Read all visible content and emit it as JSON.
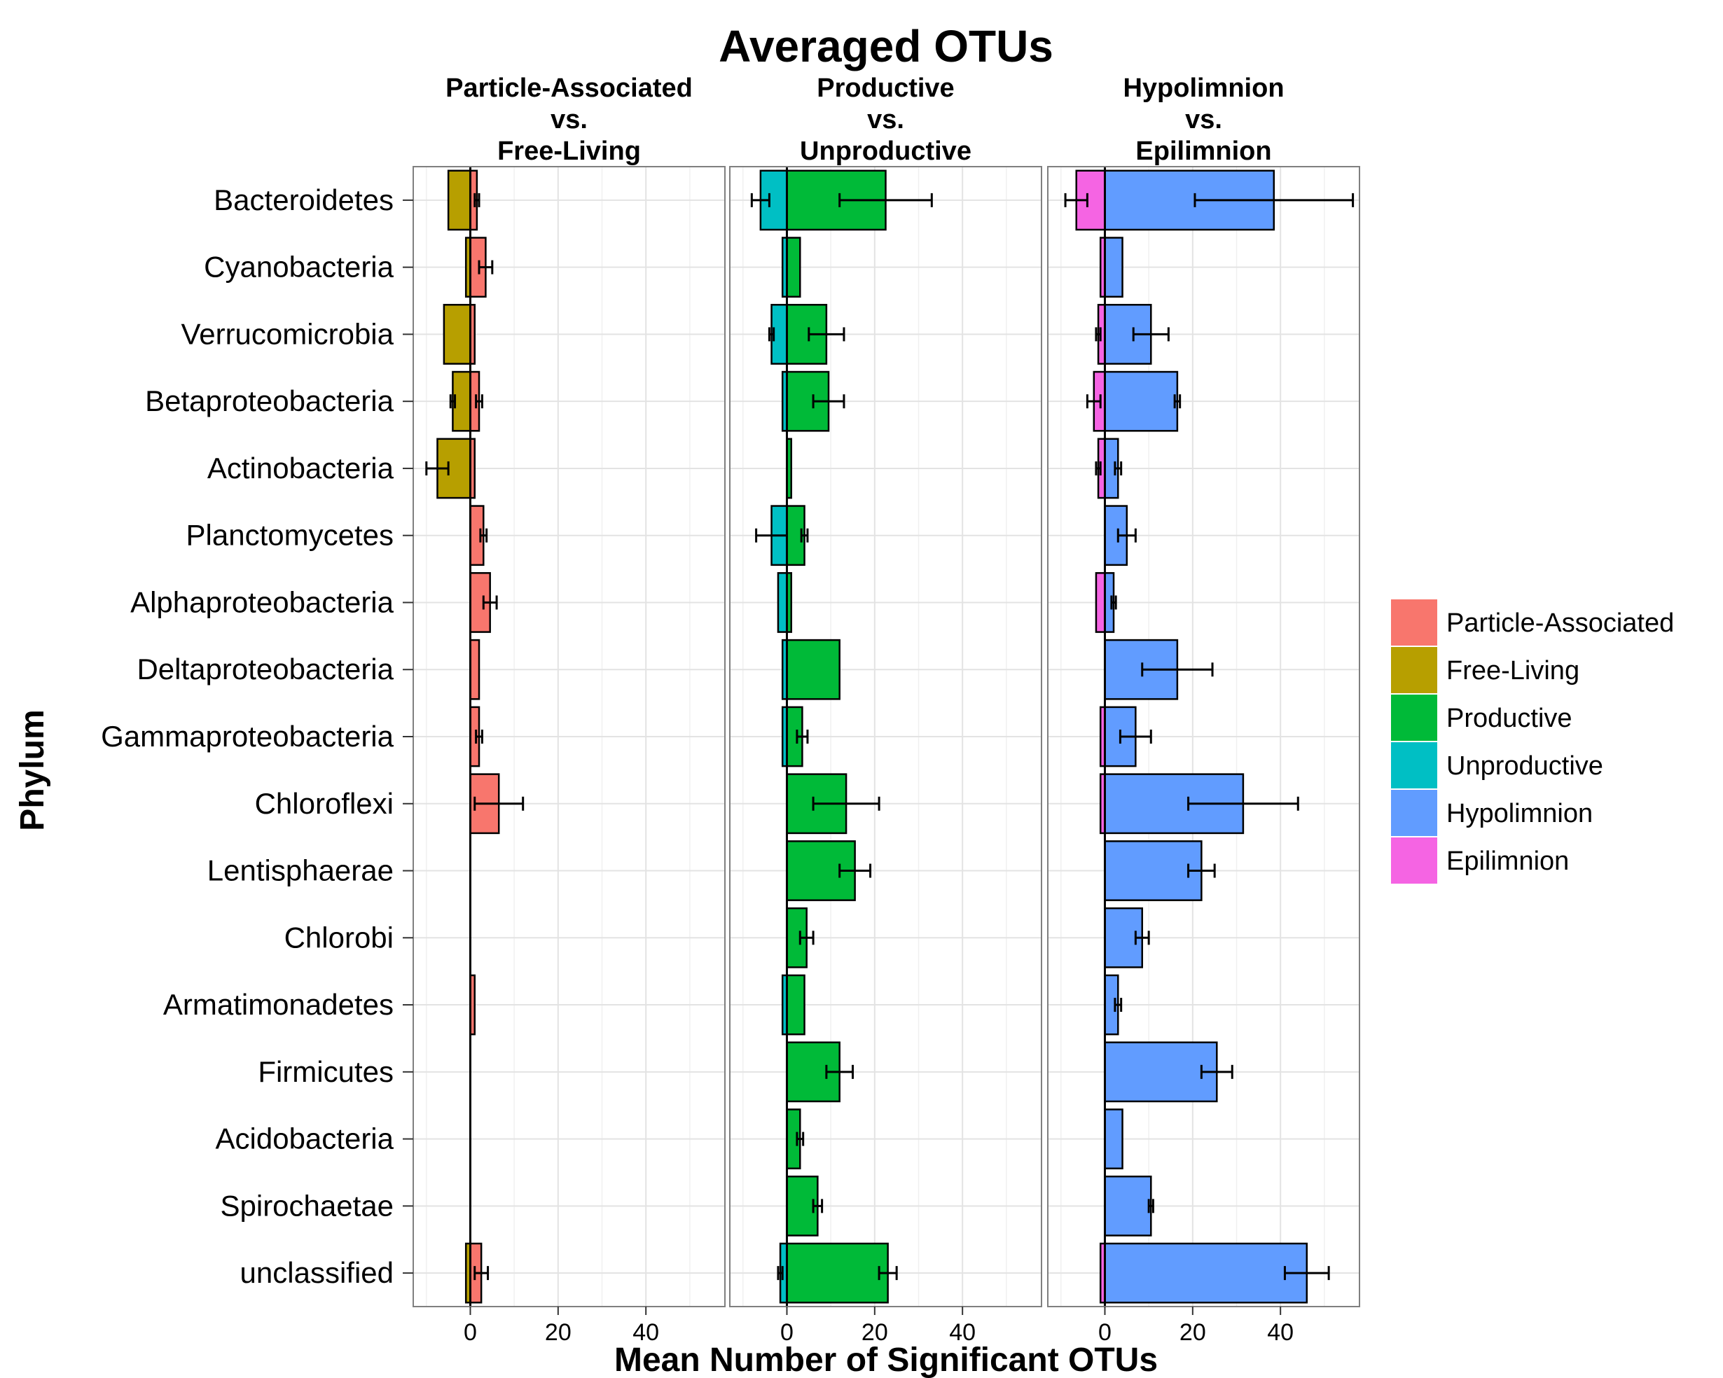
{
  "chart_data": {
    "type": "bar",
    "orientation": "horizontal",
    "title": "Averaged OTUs",
    "xlabel": "Mean Number of Significant OTUs",
    "ylabel": "Phylum",
    "xlim": [
      -13,
      58
    ],
    "x_ticks": [
      0,
      20,
      40
    ],
    "grid": true,
    "legend_position": "right",
    "categories": [
      "Bacteroidetes",
      "Cyanobacteria",
      "Verrucomicrobia",
      "Betaproteobacteria",
      "Actinobacteria",
      "Planctomycetes",
      "Alphaproteobacteria",
      "Deltaproteobacteria",
      "Gammaproteobacteria",
      "Chloroflexi",
      "Lentisphaerae",
      "Chlorobi",
      "Armatimonadetes",
      "Firmicutes",
      "Acidobacteria",
      "Spirochaetae",
      "unclassified"
    ],
    "legend": [
      {
        "name": "Particle-Associated",
        "color": "#F8766D"
      },
      {
        "name": "Free-Living",
        "color": "#B79F00"
      },
      {
        "name": "Productive",
        "color": "#00BA38"
      },
      {
        "name": "Unproductive",
        "color": "#00BFC4"
      },
      {
        "name": "Hypolimnion",
        "color": "#619CFF"
      },
      {
        "name": "Epilimnion",
        "color": "#F564E3"
      }
    ],
    "panels": [
      {
        "label_lines": [
          "Particle-Associated",
          "vs.",
          "Free-Living"
        ],
        "series": [
          {
            "name": "Particle-Associated",
            "color": "#F8766D",
            "values": [
              1.5,
              3.5,
              1,
              2,
              1,
              3,
              4.5,
              2,
              2,
              6.5,
              0,
              0,
              1,
              0,
              0,
              0,
              2.5
            ],
            "errors": [
              0.5,
              1.5,
              0,
              0.7,
              0,
              0.7,
              1.5,
              0,
              0.7,
              5.5,
              0,
              0,
              0,
              0,
              0,
              0,
              1.5
            ]
          },
          {
            "name": "Free-Living",
            "color": "#B79F00",
            "values": [
              -5,
              -1,
              -6,
              -4,
              -7.5,
              0,
              0,
              0,
              0,
              0,
              0,
              0,
              0,
              0,
              0,
              0,
              -1
            ],
            "errors": [
              0,
              0,
              0,
              0.5,
              2.5,
              0,
              0,
              0,
              0,
              0,
              0,
              0,
              0,
              0,
              0,
              0,
              0
            ]
          }
        ]
      },
      {
        "label_lines": [
          "Productive",
          "vs.",
          "Unproductive"
        ],
        "series": [
          {
            "name": "Productive",
            "color": "#00BA38",
            "values": [
              22.5,
              3,
              9,
              9.5,
              1,
              4,
              1,
              12,
              3.5,
              13.5,
              15.5,
              4.5,
              4,
              12,
              3,
              7,
              23
            ],
            "errors": [
              10.5,
              0,
              4,
              3.5,
              0,
              0.7,
              0,
              0,
              1.2,
              7.5,
              3.5,
              1.5,
              0,
              3,
              0.7,
              1,
              2
            ]
          },
          {
            "name": "Unproductive",
            "color": "#00BFC4",
            "values": [
              -6,
              -1,
              -3.5,
              -1,
              0,
              -3.5,
              -2,
              -1,
              -1,
              0,
              0,
              0,
              -1,
              0,
              0,
              0,
              -1.5
            ],
            "errors": [
              2,
              0,
              0.5,
              0,
              0,
              3.5,
              0,
              0,
              0,
              0,
              0,
              0,
              0,
              0,
              0,
              0,
              0.5
            ]
          }
        ]
      },
      {
        "label_lines": [
          "Hypolimnion",
          "vs.",
          "Epilimnion"
        ],
        "series": [
          {
            "name": "Hypolimnion",
            "color": "#619CFF",
            "values": [
              38.5,
              4,
              10.5,
              16.5,
              3,
              5,
              2,
              16.5,
              7,
              31.5,
              22,
              8.5,
              3,
              25.5,
              4,
              10.5,
              46
            ],
            "errors": [
              18,
              0,
              4,
              0.6,
              0.7,
              2,
              0.5,
              8,
              3.5,
              12.5,
              3,
              1.5,
              0.7,
              3.5,
              0,
              0.5,
              5
            ]
          },
          {
            "name": "Epilimnion",
            "color": "#F564E3",
            "values": [
              -6.5,
              -1,
              -1.5,
              -2.5,
              -1.5,
              0,
              -2,
              0,
              -1,
              -1,
              0,
              0,
              0,
              0,
              0,
              0,
              -1
            ],
            "errors": [
              2.5,
              0,
              0.5,
              1.5,
              0.5,
              0,
              0,
              0,
              0,
              0,
              0,
              0,
              0,
              0,
              0,
              0,
              0
            ]
          }
        ]
      }
    ]
  }
}
